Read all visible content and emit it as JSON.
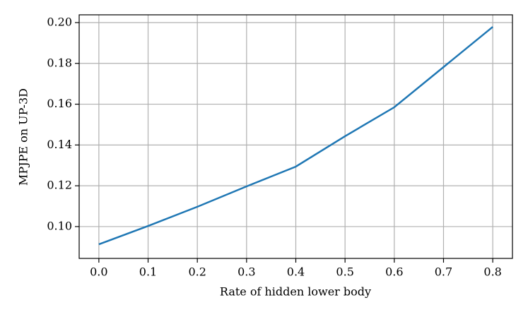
{
  "chart_data": {
    "type": "line",
    "xlabel": "Rate of hidden lower body",
    "ylabel": "MPJPE on UP-3D",
    "x": [
      0.0,
      0.1,
      0.2,
      0.3,
      0.4,
      0.5,
      0.6,
      0.7,
      0.8
    ],
    "series": [
      {
        "color": "#1f77b4",
        "values": [
          0.0913,
          0.1003,
          0.1097,
          0.1197,
          0.1294,
          0.1443,
          0.1585,
          0.1782,
          0.1979
        ]
      }
    ],
    "xlim": [
      -0.04,
      0.84
    ],
    "ylim": [
      0.0844,
      0.2038
    ],
    "xticks": [
      {
        "value": 0,
        "label": "0.0"
      },
      0.1,
      0.2,
      0.3,
      0.4,
      0.5,
      0.6,
      0.7,
      0.8
    ],
    "yticks": [
      {
        "value": 0.1,
        "label": "0.10"
      },
      0.12,
      0.14,
      0.16,
      0.18,
      {
        "value": 0.2,
        "label": "0.20"
      }
    ],
    "grid": true
  }
}
